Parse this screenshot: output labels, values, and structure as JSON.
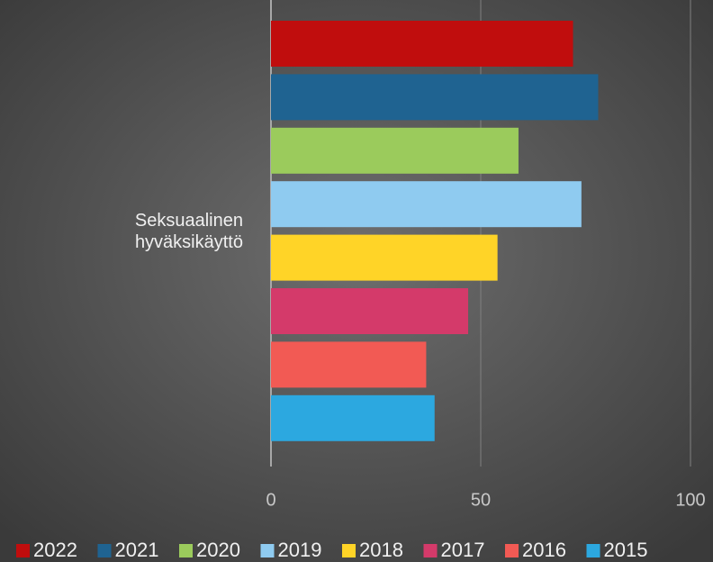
{
  "chart_data": {
    "type": "bar",
    "orientation": "horizontal",
    "categories": [
      "Seksuaalinen hyväksikäyttö"
    ],
    "series": [
      {
        "name": "2022",
        "color": "#c00d0d",
        "values": [
          72
        ]
      },
      {
        "name": "2021",
        "color": "#1f6391",
        "values": [
          78
        ]
      },
      {
        "name": "2020",
        "color": "#9bcb5c",
        "values": [
          59
        ]
      },
      {
        "name": "2019",
        "color": "#8fcbf0",
        "values": [
          74
        ]
      },
      {
        "name": "2018",
        "color": "#ffd427",
        "values": [
          54
        ]
      },
      {
        "name": "2017",
        "color": "#d43a6a",
        "values": [
          47
        ]
      },
      {
        "name": "2016",
        "color": "#f25a54",
        "values": [
          37
        ]
      },
      {
        "name": "2015",
        "color": "#2ca8e0",
        "values": [
          39
        ]
      }
    ],
    "xlim": [
      0,
      100
    ],
    "xticks": [
      0,
      50,
      100
    ],
    "grid": true,
    "legend": "bottom"
  }
}
